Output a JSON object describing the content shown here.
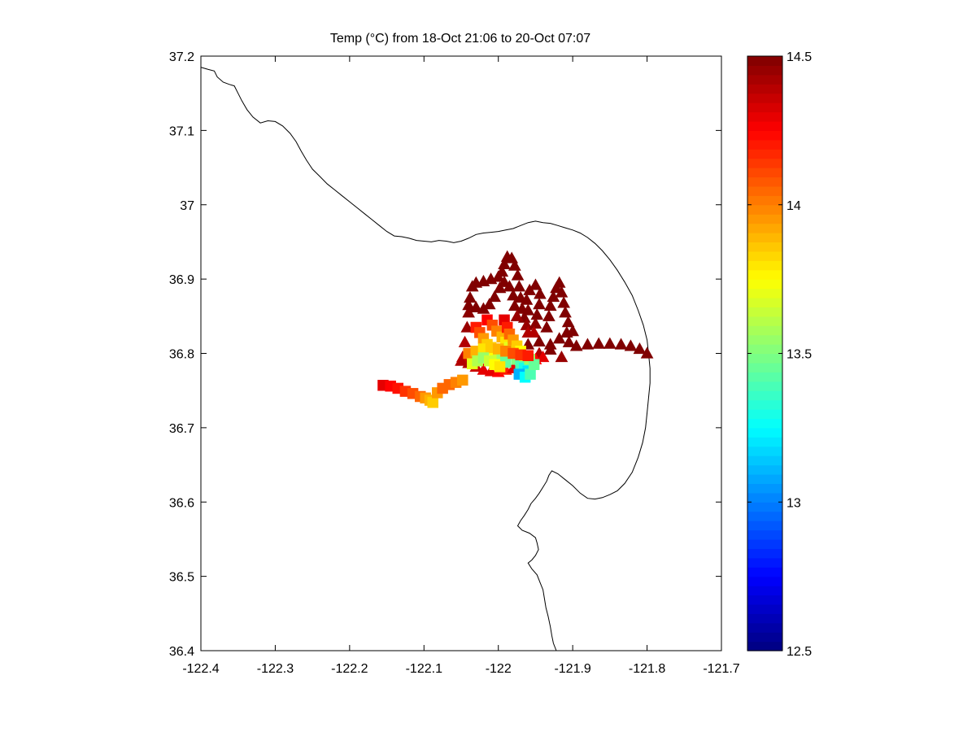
{
  "chart_data": {
    "type": "scatter",
    "title": "Temp (°C) from 18-Oct 21:06 to 20-Oct 07:07",
    "xlabel": "",
    "ylabel": "",
    "xlim": [
      -122.4,
      -121.7
    ],
    "ylim": [
      36.4,
      37.2
    ],
    "xticks": [
      -122.4,
      -122.3,
      -122.2,
      -122.1,
      -122,
      -121.9,
      -121.8,
      -121.7
    ],
    "xtick_labels": [
      "-122.4",
      "-122.3",
      "-122.2",
      "-122.1",
      "-122",
      "-121.9",
      "-121.8",
      "-121.7"
    ],
    "yticks": [
      36.4,
      36.5,
      36.6,
      36.7,
      36.8,
      36.9,
      37.0,
      37.1,
      37.2
    ],
    "ytick_labels": [
      "36.4",
      "36.5",
      "36.6",
      "36.7",
      "36.8",
      "36.9",
      "37",
      "37.1",
      "37.2"
    ],
    "grid": false,
    "colormap": "jet",
    "colorbar": {
      "range": [
        12.5,
        14.5
      ],
      "ticks": [
        12.5,
        13,
        13.5,
        14,
        14.5
      ],
      "tick_labels": [
        "12.5",
        "13",
        "13.5",
        "14",
        "14.5"
      ]
    },
    "coastline": [
      [
        -122.4,
        37.185
      ],
      [
        -122.39,
        37.182
      ],
      [
        -122.382,
        37.18
      ],
      [
        -122.378,
        37.172
      ],
      [
        -122.37,
        37.165
      ],
      [
        -122.362,
        37.162
      ],
      [
        -122.355,
        37.16
      ],
      [
        -122.35,
        37.15
      ],
      [
        -122.345,
        37.14
      ],
      [
        -122.338,
        37.128
      ],
      [
        -122.33,
        37.118
      ],
      [
        -122.32,
        37.11
      ],
      [
        -122.31,
        37.113
      ],
      [
        -122.3,
        37.112
      ],
      [
        -122.29,
        37.106
      ],
      [
        -122.28,
        37.096
      ],
      [
        -122.272,
        37.085
      ],
      [
        -122.265,
        37.072
      ],
      [
        -122.258,
        37.06
      ],
      [
        -122.25,
        37.048
      ],
      [
        -122.24,
        37.038
      ],
      [
        -122.23,
        37.028
      ],
      [
        -122.22,
        37.02
      ],
      [
        -122.21,
        37.012
      ],
      [
        -122.2,
        37.004
      ],
      [
        -122.19,
        36.996
      ],
      [
        -122.18,
        36.988
      ],
      [
        -122.17,
        36.98
      ],
      [
        -122.16,
        36.972
      ],
      [
        -122.15,
        36.964
      ],
      [
        -122.14,
        36.958
      ],
      [
        -122.13,
        36.957
      ],
      [
        -122.12,
        36.955
      ],
      [
        -122.11,
        36.952
      ],
      [
        -122.1,
        36.951
      ],
      [
        -122.09,
        36.95
      ],
      [
        -122.08,
        36.952
      ],
      [
        -122.07,
        36.951
      ],
      [
        -122.06,
        36.949
      ],
      [
        -122.05,
        36.951
      ],
      [
        -122.04,
        36.955
      ],
      [
        -122.03,
        36.96
      ],
      [
        -122.02,
        36.962
      ],
      [
        -122.01,
        36.963
      ],
      [
        -122.0,
        36.964
      ],
      [
        -121.99,
        36.966
      ],
      [
        -121.98,
        36.968
      ],
      [
        -121.97,
        36.972
      ],
      [
        -121.96,
        36.976
      ],
      [
        -121.95,
        36.978
      ],
      [
        -121.94,
        36.976
      ],
      [
        -121.93,
        36.975
      ],
      [
        -121.92,
        36.972
      ],
      [
        -121.91,
        36.969
      ],
      [
        -121.9,
        36.966
      ],
      [
        -121.89,
        36.962
      ],
      [
        -121.88,
        36.956
      ],
      [
        -121.87,
        36.948
      ],
      [
        -121.86,
        36.938
      ],
      [
        -121.85,
        36.926
      ],
      [
        -121.84,
        36.912
      ],
      [
        -121.83,
        36.896
      ],
      [
        -121.82,
        36.878
      ],
      [
        -121.812,
        36.858
      ],
      [
        -121.805,
        36.838
      ],
      [
        -121.8,
        36.818
      ],
      [
        -121.798,
        36.8
      ],
      [
        -121.796,
        36.78
      ],
      [
        -121.796,
        36.76
      ],
      [
        -121.798,
        36.74
      ],
      [
        -121.8,
        36.72
      ],
      [
        -121.802,
        36.7
      ],
      [
        -121.806,
        36.68
      ],
      [
        -121.812,
        36.66
      ],
      [
        -121.82,
        36.64
      ],
      [
        -121.83,
        36.625
      ],
      [
        -121.84,
        36.615
      ],
      [
        -121.85,
        36.61
      ],
      [
        -121.86,
        36.606
      ],
      [
        -121.87,
        36.604
      ],
      [
        -121.88,
        36.605
      ],
      [
        -121.89,
        36.612
      ],
      [
        -121.9,
        36.622
      ],
      [
        -121.91,
        36.63
      ],
      [
        -121.92,
        36.638
      ],
      [
        -121.928,
        36.642
      ],
      [
        -121.932,
        36.636
      ],
      [
        -121.935,
        36.628
      ],
      [
        -121.94,
        36.62
      ],
      [
        -121.945,
        36.612
      ],
      [
        -121.95,
        36.605
      ],
      [
        -121.956,
        36.598
      ],
      [
        -121.96,
        36.59
      ],
      [
        -121.965,
        36.582
      ],
      [
        -121.97,
        36.575
      ],
      [
        -121.974,
        36.568
      ],
      [
        -121.968,
        36.562
      ],
      [
        -121.958,
        36.558
      ],
      [
        -121.95,
        36.552
      ],
      [
        -121.948,
        36.545
      ],
      [
        -121.946,
        36.536
      ],
      [
        -121.95,
        36.528
      ],
      [
        -121.955,
        36.522
      ],
      [
        -121.96,
        36.518
      ],
      [
        -121.955,
        36.51
      ],
      [
        -121.948,
        36.502
      ],
      [
        -121.944,
        36.492
      ],
      [
        -121.94,
        36.482
      ],
      [
        -121.938,
        36.47
      ],
      [
        -121.936,
        36.458
      ],
      [
        -121.933,
        36.446
      ],
      [
        -121.93,
        36.432
      ],
      [
        -121.928,
        36.42
      ],
      [
        -121.926,
        36.41
      ],
      [
        -121.922,
        36.4
      ]
    ],
    "tracks": [
      {
        "marker": "square",
        "points": [
          [
            -122.155,
            36.757,
            14.3
          ],
          [
            -122.145,
            36.756,
            14.25
          ],
          [
            -122.135,
            36.753,
            14.22
          ],
          [
            -122.125,
            36.749,
            14.15
          ],
          [
            -122.115,
            36.746,
            14.1
          ],
          [
            -122.105,
            36.742,
            14.05
          ],
          [
            -122.098,
            36.74,
            13.95
          ],
          [
            -122.092,
            36.737,
            13.9
          ],
          [
            -122.088,
            36.734,
            13.85
          ],
          [
            -122.082,
            36.747,
            13.95
          ],
          [
            -122.075,
            36.753,
            14.05
          ],
          [
            -122.066,
            36.758,
            14.05
          ],
          [
            -122.057,
            36.761,
            14.0
          ],
          [
            -122.048,
            36.764,
            13.95
          ]
        ]
      },
      {
        "marker": "triangle",
        "points": [
          [
            -122.048,
            36.795,
            14.35
          ],
          [
            -122.045,
            36.815,
            14.4
          ],
          [
            -122.042,
            36.835,
            14.45
          ],
          [
            -122.04,
            36.855,
            14.48
          ],
          [
            -122.038,
            36.875,
            14.5
          ],
          [
            -122.035,
            36.89,
            14.5
          ],
          [
            -122.03,
            36.895,
            14.5
          ],
          [
            -122.02,
            36.897,
            14.5
          ],
          [
            -122.01,
            36.9,
            14.5
          ],
          [
            -122.0,
            36.903,
            14.5
          ],
          [
            -121.995,
            36.91,
            14.5
          ],
          [
            -121.992,
            36.92,
            14.5
          ],
          [
            -121.988,
            36.93,
            14.5
          ],
          [
            -121.982,
            36.928,
            14.5
          ],
          [
            -121.978,
            36.918,
            14.5
          ],
          [
            -121.974,
            36.905,
            14.5
          ],
          [
            -121.972,
            36.89,
            14.5
          ],
          [
            -121.97,
            36.875,
            14.5
          ],
          [
            -121.968,
            36.86,
            14.5
          ],
          [
            -121.965,
            36.848,
            14.5
          ],
          [
            -121.962,
            36.838,
            14.45
          ],
          [
            -121.96,
            36.828,
            14.4
          ]
        ]
      },
      {
        "marker": "triangle",
        "points": [
          [
            -122.04,
            36.865,
            14.5
          ],
          [
            -122.03,
            36.862,
            14.5
          ],
          [
            -122.02,
            36.86,
            14.5
          ],
          [
            -122.012,
            36.866,
            14.5
          ],
          [
            -122.005,
            36.876,
            14.5
          ],
          [
            -121.998,
            36.888,
            14.5
          ],
          [
            -121.992,
            36.896,
            14.5
          ],
          [
            -121.985,
            36.89,
            14.5
          ],
          [
            -121.98,
            36.878,
            14.5
          ],
          [
            -121.978,
            36.864,
            14.5
          ],
          [
            -121.975,
            36.85,
            14.45
          ]
        ]
      },
      {
        "marker": "triangle",
        "points": [
          [
            -121.96,
            36.858,
            14.5
          ],
          [
            -121.962,
            36.872,
            14.5
          ],
          [
            -121.958,
            36.885,
            14.5
          ],
          [
            -121.95,
            36.892,
            14.5
          ],
          [
            -121.944,
            36.88,
            14.5
          ],
          [
            -121.945,
            36.866,
            14.5
          ],
          [
            -121.948,
            36.852,
            14.5
          ],
          [
            -121.95,
            36.84,
            14.48
          ],
          [
            -121.952,
            36.828,
            14.4
          ]
        ]
      },
      {
        "marker": "triangle",
        "points": [
          [
            -121.935,
            36.835,
            14.5
          ],
          [
            -121.932,
            36.85,
            14.5
          ],
          [
            -121.93,
            36.864,
            14.5
          ],
          [
            -121.926,
            36.876,
            14.5
          ],
          [
            -121.922,
            36.888,
            14.5
          ],
          [
            -121.918,
            36.895,
            14.5
          ],
          [
            -121.915,
            36.882,
            14.5
          ],
          [
            -121.912,
            36.868,
            14.5
          ],
          [
            -121.91,
            36.855,
            14.5
          ],
          [
            -121.906,
            36.842,
            14.5
          ]
        ]
      },
      {
        "marker": "triangle",
        "points": [
          [
            -121.96,
            36.812,
            14.5
          ],
          [
            -121.945,
            36.816,
            14.5
          ],
          [
            -121.93,
            36.812,
            14.5
          ],
          [
            -121.918,
            36.82,
            14.5
          ],
          [
            -121.908,
            36.828,
            14.5
          ],
          [
            -121.9,
            36.83,
            14.5
          ],
          [
            -121.905,
            36.815,
            14.5
          ],
          [
            -121.895,
            36.81,
            14.5
          ],
          [
            -121.88,
            36.812,
            14.5
          ],
          [
            -121.865,
            36.813,
            14.5
          ],
          [
            -121.85,
            36.813,
            14.5
          ],
          [
            -121.835,
            36.812,
            14.5
          ],
          [
            -121.822,
            36.81,
            14.5
          ],
          [
            -121.81,
            36.806,
            14.5
          ],
          [
            -121.8,
            36.8,
            14.5
          ],
          [
            -121.915,
            36.795,
            14.45
          ],
          [
            -121.93,
            36.805,
            14.5
          ],
          [
            -121.945,
            36.8,
            14.4
          ]
        ]
      },
      {
        "marker": "triangle",
        "points": [
          [
            -122.05,
            36.79,
            14.4
          ],
          [
            -122.04,
            36.787,
            14.4
          ],
          [
            -122.03,
            36.782,
            14.35
          ],
          [
            -122.02,
            36.778,
            14.3
          ],
          [
            -122.01,
            36.776,
            14.3
          ],
          [
            -122.0,
            36.775,
            14.25
          ],
          [
            -121.99,
            36.778,
            14.2
          ],
          [
            -121.98,
            36.78,
            14.3
          ],
          [
            -121.97,
            36.783,
            14.35
          ],
          [
            -121.96,
            36.788,
            14.3
          ],
          [
            -121.95,
            36.792,
            14.25
          ],
          [
            -121.94,
            36.795,
            14.3
          ]
        ]
      },
      {
        "marker": "square",
        "points": [
          [
            -122.03,
            36.835,
            14.2
          ],
          [
            -122.025,
            36.828,
            14.1
          ],
          [
            -122.02,
            36.82,
            13.95
          ],
          [
            -122.015,
            36.812,
            13.85
          ],
          [
            -122.01,
            36.806,
            13.8
          ],
          [
            -122.005,
            36.8,
            13.75
          ],
          [
            -122.0,
            36.796,
            13.65
          ],
          [
            -121.995,
            36.792,
            13.55
          ],
          [
            -121.99,
            36.788,
            13.45
          ]
        ]
      },
      {
        "marker": "square",
        "points": [
          [
            -122.015,
            36.845,
            14.25
          ],
          [
            -122.008,
            36.838,
            14.1
          ],
          [
            -122.002,
            36.83,
            14.0
          ],
          [
            -121.995,
            36.822,
            13.9
          ],
          [
            -121.99,
            36.815,
            13.8
          ],
          [
            -121.985,
            36.808,
            13.7
          ],
          [
            -121.98,
            36.8,
            13.6
          ],
          [
            -121.975,
            36.792,
            13.5
          ],
          [
            -121.97,
            36.786,
            13.4
          ],
          [
            -121.965,
            36.78,
            13.3
          ],
          [
            -121.96,
            36.776,
            13.2
          ],
          [
            -121.972,
            36.772,
            13.1
          ],
          [
            -121.964,
            36.768,
            13.25
          ],
          [
            -121.957,
            36.772,
            13.4
          ]
        ]
      },
      {
        "marker": "square",
        "points": [
          [
            -121.992,
            36.845,
            14.3
          ],
          [
            -121.988,
            36.835,
            14.2
          ],
          [
            -121.985,
            36.826,
            14.05
          ],
          [
            -121.98,
            36.818,
            13.95
          ],
          [
            -121.975,
            36.81,
            13.85
          ],
          [
            -121.97,
            36.803,
            13.75
          ],
          [
            -121.965,
            36.797,
            13.65
          ],
          [
            -121.958,
            36.792,
            13.55
          ],
          [
            -121.952,
            36.785,
            13.45
          ]
        ]
      },
      {
        "marker": "square",
        "points": [
          [
            -122.04,
            36.8,
            14.0
          ],
          [
            -122.03,
            36.803,
            13.9
          ],
          [
            -122.02,
            36.806,
            13.8
          ],
          [
            -122.01,
            36.808,
            13.85
          ],
          [
            -122.0,
            36.806,
            13.9
          ],
          [
            -121.99,
            36.803,
            14.0
          ],
          [
            -121.98,
            36.8,
            14.1
          ],
          [
            -121.97,
            36.798,
            14.15
          ],
          [
            -121.96,
            36.797,
            14.2
          ]
        ]
      },
      {
        "marker": "square",
        "points": [
          [
            -122.035,
            36.786,
            13.7
          ],
          [
            -122.028,
            36.79,
            13.6
          ],
          [
            -122.02,
            36.794,
            13.55
          ],
          [
            -122.012,
            36.79,
            13.65
          ],
          [
            -122.005,
            36.785,
            13.75
          ],
          [
            -121.998,
            36.782,
            13.8
          ]
        ]
      }
    ]
  }
}
